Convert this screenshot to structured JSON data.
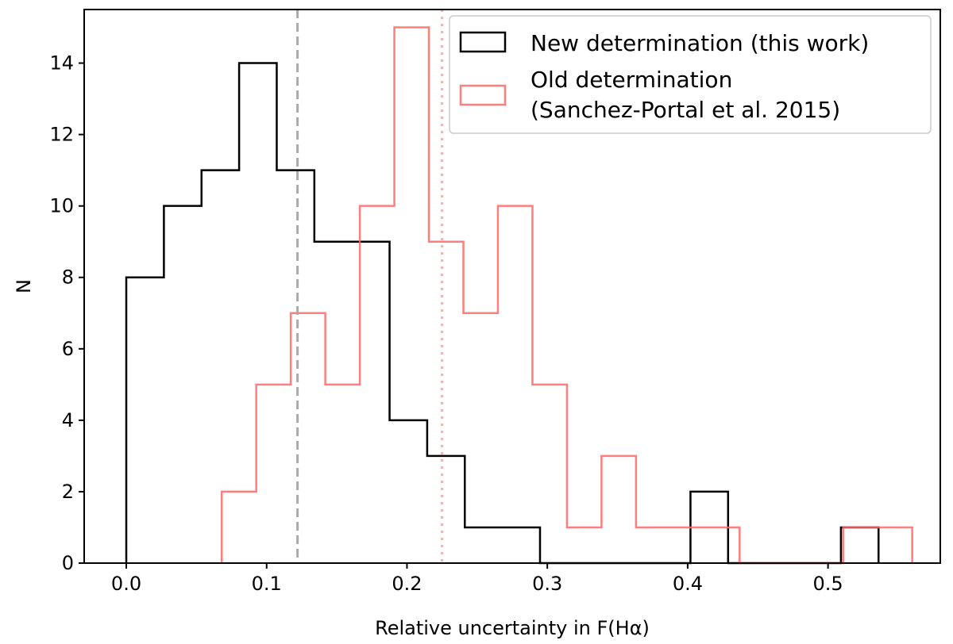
{
  "chart_data": {
    "type": "histogram",
    "xlabel": "Relative uncertainty in F(Hα)",
    "ylabel": "N",
    "xlim": [
      -0.03,
      0.58
    ],
    "ylim": [
      0,
      15.5
    ],
    "xticks": [
      0.0,
      0.1,
      0.2,
      0.3,
      0.4,
      0.5
    ],
    "xtick_labels": [
      "0.0",
      "0.1",
      "0.2",
      "0.3",
      "0.4",
      "0.5"
    ],
    "yticks": [
      0,
      2,
      4,
      6,
      8,
      10,
      12,
      14
    ],
    "ytick_labels": [
      "0",
      "2",
      "4",
      "6",
      "8",
      "10",
      "12",
      "14"
    ],
    "grid": false,
    "legend_position": "top-right",
    "series": [
      {
        "name": "New determination (this work)",
        "color": "#000000",
        "style": "step",
        "bin_edges": [
          0.0,
          0.0268,
          0.0536,
          0.0804,
          0.1072,
          0.134,
          0.1608,
          0.1876,
          0.2144,
          0.2412,
          0.268,
          0.2948,
          0.3216,
          0.3484,
          0.3752,
          0.402,
          0.4288,
          0.4556,
          0.4824,
          0.5092,
          0.536
        ],
        "counts": [
          8,
          10,
          11,
          14,
          11,
          9,
          9,
          4,
          3,
          1,
          1,
          0,
          0,
          0,
          0,
          2,
          0,
          0,
          0,
          1
        ]
      },
      {
        "name": "Old determination\n(Sanchez-Portal et al. 2015)",
        "legend_lines": [
          "Old determination",
          "(Sanchez-Portal et al. 2015)"
        ],
        "color": "#ff6666",
        "style": "step",
        "bin_edges": [
          0.068,
          0.0926,
          0.1172,
          0.1418,
          0.1664,
          0.191,
          0.2156,
          0.2402,
          0.2648,
          0.2894,
          0.314,
          0.3386,
          0.3632,
          0.3878,
          0.4124,
          0.437,
          0.4616,
          0.4862,
          0.5108,
          0.5354,
          0.56
        ],
        "counts": [
          2,
          5,
          7,
          5,
          10,
          15,
          9,
          7,
          10,
          5,
          1,
          3,
          1,
          1,
          1,
          0,
          0,
          0,
          1,
          1
        ]
      }
    ],
    "reference_lines": [
      {
        "x": 0.122,
        "color": "#aaaaaa",
        "style": "dashed"
      },
      {
        "x": 0.225,
        "color": "#ffaaaa",
        "style": "dotted"
      }
    ]
  }
}
